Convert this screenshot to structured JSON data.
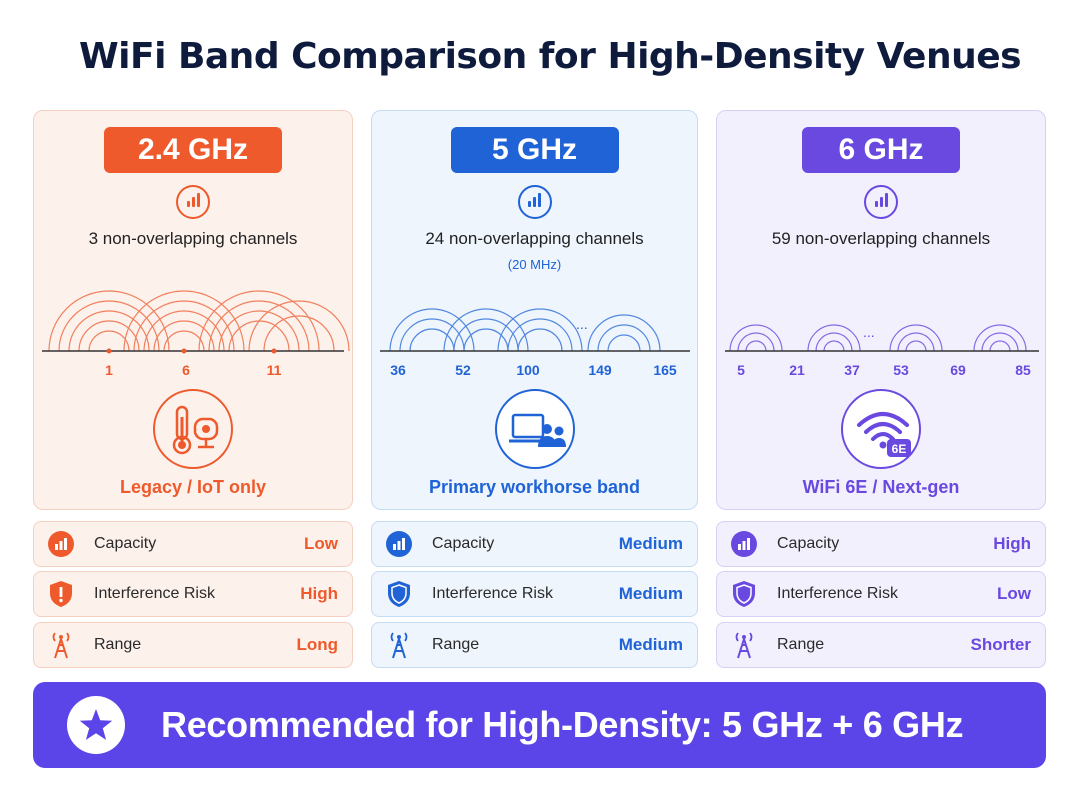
{
  "title": "WiFi Band Comparison for High-Density Venues",
  "bands": [
    {
      "name": "2.4 GHz",
      "channels": "3 non-overlapping channels",
      "sub": "",
      "ticks": [
        "1",
        "6",
        "11"
      ],
      "label": "Legacy / IoT only",
      "icon": "thermometer-camera-icon",
      "color": "#ee5a2c",
      "bg": "#fdf1ec",
      "border": "#f5cfc0",
      "capacity": "Low",
      "interference": "High",
      "range": "Long"
    },
    {
      "name": "5 GHz",
      "channels": "24 non-overlapping channels",
      "sub": "(20 MHz)",
      "ticks": [
        "36",
        "52",
        "100",
        "149",
        "165"
      ],
      "label": "Primary workhorse band",
      "icon": "laptop-users-icon",
      "color": "#1f63d6",
      "bg": "#eef5fd",
      "border": "#c6dbf4",
      "capacity": "Medium",
      "interference": "Medium",
      "range": "Medium"
    },
    {
      "name": "6 GHz",
      "channels": "59 non-overlapping channels",
      "sub": "",
      "ticks": [
        "5",
        "21",
        "37",
        "53",
        "69",
        "85"
      ],
      "label": "WiFi 6E / Next-gen",
      "icon": "wifi-6e-icon",
      "icon_text": "6E",
      "color": "#6a49e0",
      "bg": "#f3f0fd",
      "border": "#d8cff5",
      "capacity": "High",
      "interference": "Low",
      "range": "Shorter"
    }
  ],
  "metrics": {
    "capacity": "Capacity",
    "interference": "Interference Risk",
    "range": "Range"
  },
  "recommendation": "Recommended for High-Density: 5 GHz + 6 GHz"
}
